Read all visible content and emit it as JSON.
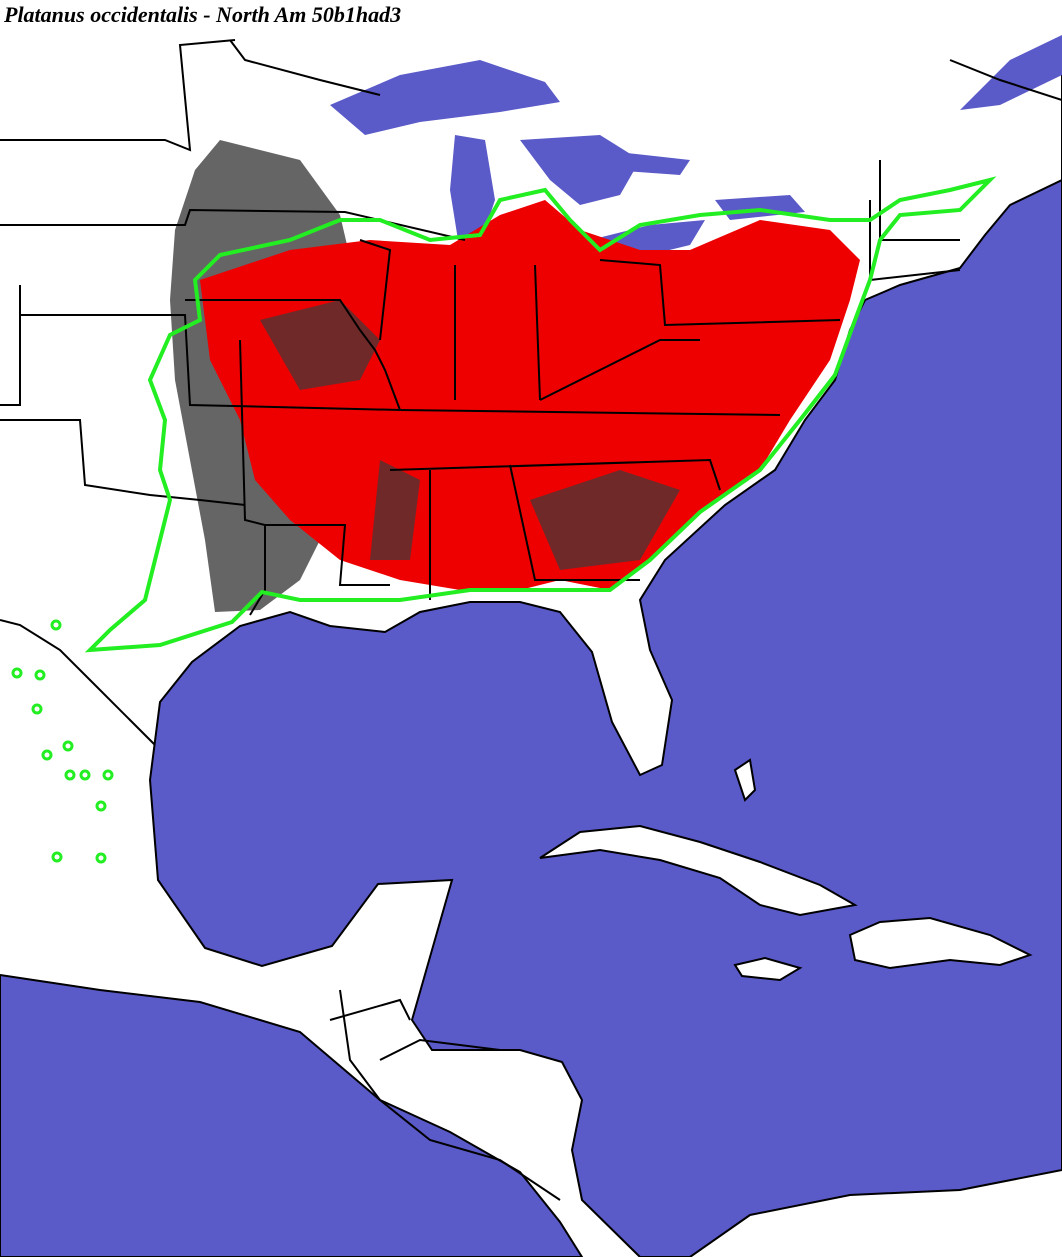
{
  "title": "Platanus occidentalis - North Am 50b1had3"
}
